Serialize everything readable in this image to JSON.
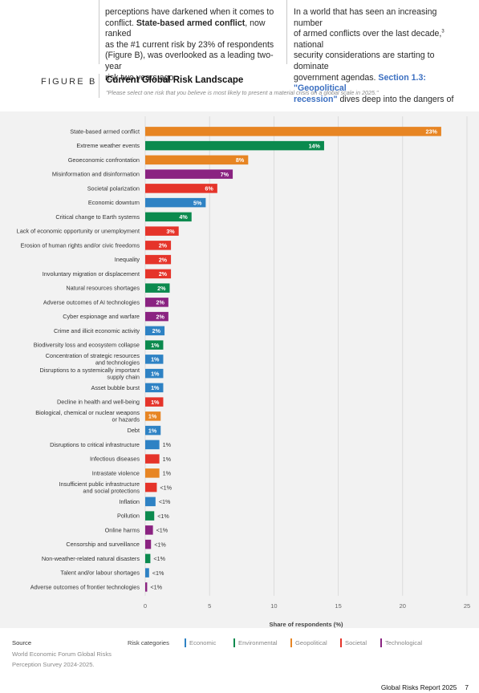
{
  "intro": {
    "left_lines": [
      {
        "segments": [
          {
            "t": "perceptions have darkened when it comes to",
            "b": false
          }
        ]
      },
      {
        "segments": [
          {
            "t": "conflict. ",
            "b": false
          },
          {
            "t": "State-based armed conflict",
            "b": true
          },
          {
            "t": ", now ranked",
            "b": false
          }
        ]
      },
      {
        "segments": [
          {
            "t": "as the #1 current risk by 23% of respondents",
            "b": false
          }
        ]
      },
      {
        "segments": [
          {
            "t": "(Figure B), was overlooked as a leading two-year",
            "b": false
          }
        ]
      },
      {
        "segments": [
          {
            "t": "risk two years ago.",
            "b": false
          }
        ]
      }
    ],
    "right_line1": "In a world that has seen an increasing number",
    "right_line2_a": "of armed conflicts over the last decade,",
    "right_line2_sup": "3",
    "right_line2_b": " national",
    "right_line3": "security considerations are starting to dominate",
    "right_line4_a": "government agendas. ",
    "right_line4_link": "Section 1.3: \"Geopolitical",
    "right_line5_link": "recession\"",
    "right_line5_b": " dives deep into the dangers of"
  },
  "figure": {
    "label": "FIGURE B",
    "title": "Current Global Risk Landscape",
    "subtitle": "\"Please select one risk that you believe is most likely to present a material crisis on a global scale in 2025.\""
  },
  "colors": {
    "Economic": "#2e82c4",
    "Environmental": "#0b8a4e",
    "Geopolitical": "#e78523",
    "Societal": "#e5342a",
    "Technological": "#8a2381"
  },
  "chart_data": {
    "type": "bar",
    "orientation": "horizontal",
    "xlabel": "Share of respondents (%)",
    "xlim": [
      0,
      25
    ],
    "xticks": [
      "0",
      "5",
      "10",
      "15",
      "20",
      "25"
    ],
    "grid": true,
    "legend_placement": "bottom",
    "bars": [
      {
        "label": [
          "State-based armed conflict"
        ],
        "value": 23,
        "display": "23%",
        "category": "Geopolitical"
      },
      {
        "label": [
          "Extreme weather events"
        ],
        "value": 13.9,
        "display": "14%",
        "category": "Environmental"
      },
      {
        "label": [
          "Geoeconomic confrontation"
        ],
        "value": 8,
        "display": "8%",
        "category": "Geopolitical"
      },
      {
        "label": [
          "Misinformation and disinformation"
        ],
        "value": 6.8,
        "display": "7%",
        "category": "Technological"
      },
      {
        "label": [
          "Societal polarization"
        ],
        "value": 5.6,
        "display": "6%",
        "category": "Societal"
      },
      {
        "label": [
          "Economic downturn"
        ],
        "value": 4.7,
        "display": "5%",
        "category": "Economic"
      },
      {
        "label": [
          "Critical change to Earth systems"
        ],
        "value": 3.6,
        "display": "4%",
        "category": "Environmental"
      },
      {
        "label": [
          "Lack of economic opportunity or unemployment"
        ],
        "value": 2.6,
        "display": "3%",
        "category": "Societal"
      },
      {
        "label": [
          "Erosion of human rights and/or civic freedoms"
        ],
        "value": 2,
        "display": "2%",
        "category": "Societal"
      },
      {
        "label": [
          "Inequality"
        ],
        "value": 2,
        "display": "2%",
        "category": "Societal"
      },
      {
        "label": [
          "Involuntary migration or displacement"
        ],
        "value": 2,
        "display": "2%",
        "category": "Societal"
      },
      {
        "label": [
          "Natural resources shortages"
        ],
        "value": 1.9,
        "display": "2%",
        "category": "Environmental"
      },
      {
        "label": [
          "Adverse outcomes of AI technologies"
        ],
        "value": 1.8,
        "display": "2%",
        "category": "Technological"
      },
      {
        "label": [
          "Cyber espionage and warfare"
        ],
        "value": 1.8,
        "display": "2%",
        "category": "Technological"
      },
      {
        "label": [
          "Crime and illicit economic activity"
        ],
        "value": 1.5,
        "display": "2%",
        "category": "Economic"
      },
      {
        "label": [
          "Biodiversity loss and ecosystem collapse"
        ],
        "value": 1.4,
        "display": "1%",
        "category": "Environmental"
      },
      {
        "label": [
          "Concentration of strategic resources",
          "and technologies"
        ],
        "value": 1.4,
        "display": "1%",
        "category": "Economic"
      },
      {
        "label": [
          "Disruptions to a systemically important",
          "supply chain"
        ],
        "value": 1.4,
        "display": "1%",
        "category": "Economic"
      },
      {
        "label": [
          "Asset bubble burst"
        ],
        "value": 1.4,
        "display": "1%",
        "category": "Economic"
      },
      {
        "label": [
          "Decline in health and well-being"
        ],
        "value": 1.4,
        "display": "1%",
        "category": "Societal"
      },
      {
        "label": [
          "Biological, chemical or nuclear weapons",
          "or hazards"
        ],
        "value": 1.2,
        "display": "1%",
        "category": "Geopolitical"
      },
      {
        "label": [
          "Debt"
        ],
        "value": 1.2,
        "display": "1%",
        "category": "Economic"
      },
      {
        "label": [
          "Disruptions to critical infrastructure"
        ],
        "value": 1.1,
        "display": "1%",
        "category": "Economic"
      },
      {
        "label": [
          "Infectious diseases"
        ],
        "value": 1.1,
        "display": "1%",
        "category": "Societal"
      },
      {
        "label": [
          "Intrastate violence"
        ],
        "value": 1.1,
        "display": "1%",
        "category": "Geopolitical"
      },
      {
        "label": [
          "Insufficient public infrastructure",
          "and social protections"
        ],
        "value": 0.9,
        "display": "<1%",
        "category": "Societal"
      },
      {
        "label": [
          "Inflation"
        ],
        "value": 0.8,
        "display": "<1%",
        "category": "Economic"
      },
      {
        "label": [
          "Pollution"
        ],
        "value": 0.7,
        "display": "<1%",
        "category": "Environmental"
      },
      {
        "label": [
          "Online harms"
        ],
        "value": 0.6,
        "display": "<1%",
        "category": "Technological"
      },
      {
        "label": [
          "Censorship and surveillance"
        ],
        "value": 0.45,
        "display": "<1%",
        "category": "Technological"
      },
      {
        "label": [
          "Non-weather-related natural disasters"
        ],
        "value": 0.4,
        "display": "<1%",
        "category": "Environmental"
      },
      {
        "label": [
          "Talent and/or labour shortages"
        ],
        "value": 0.3,
        "display": "<1%",
        "category": "Economic"
      },
      {
        "label": [
          "Adverse outcomes of frontier technologies"
        ],
        "value": 0.15,
        "display": "<1%",
        "category": "Technological"
      }
    ]
  },
  "source": {
    "title": "Source",
    "line1": "World Economic Forum Global Risks",
    "line2": "Perception Survey 2024-2025."
  },
  "legend": {
    "label": "Risk categories",
    "items": [
      {
        "name": "Economic",
        "category": "Economic"
      },
      {
        "name": "Environmental",
        "category": "Environmental"
      },
      {
        "name": "Geopolitical",
        "category": "Geopolitical"
      },
      {
        "name": "Societal",
        "category": "Societal"
      },
      {
        "name": "Technological",
        "category": "Technological"
      }
    ]
  },
  "footer": {
    "report": "Global Risks Report 2025",
    "page": "7"
  }
}
